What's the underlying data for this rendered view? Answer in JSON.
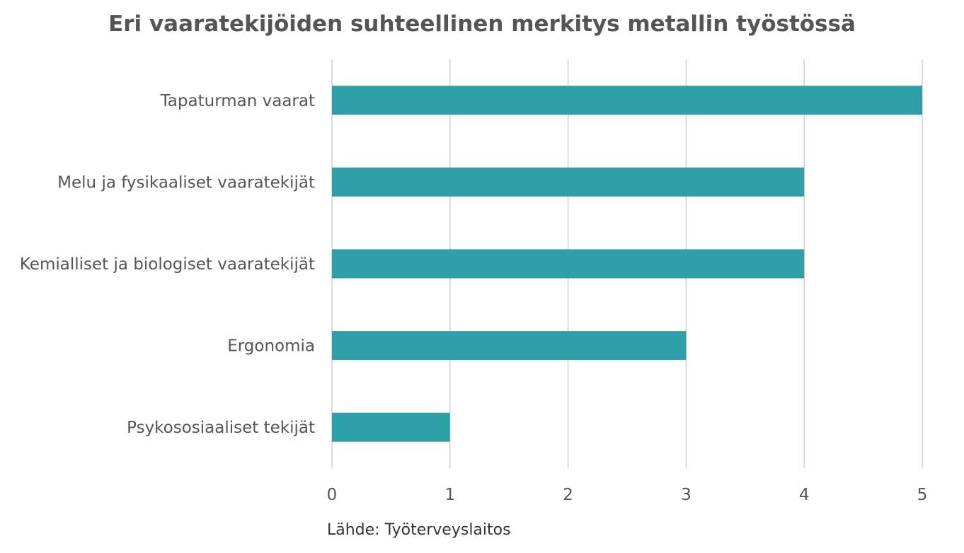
{
  "chart_data": {
    "type": "bar",
    "orientation": "horizontal",
    "title": "Eri vaaratekijöiden suhteellinen merkitys metallin työstössä",
    "categories": [
      "Tapaturman vaarat",
      "Melu ja fysikaaliset vaaratekijät",
      "Kemialliset ja biologiset vaaratekijät",
      "Ergonomia",
      "Psykososiaaliset tekijät"
    ],
    "values": [
      5,
      4,
      4,
      3,
      1
    ],
    "xlim": [
      0,
      5
    ],
    "xticks": [
      "0",
      "1",
      "2",
      "3",
      "4",
      "5"
    ],
    "grid": "vertical",
    "bar_color": "#2e9fa6"
  },
  "source": "Lähde: Työterveyslaitos"
}
